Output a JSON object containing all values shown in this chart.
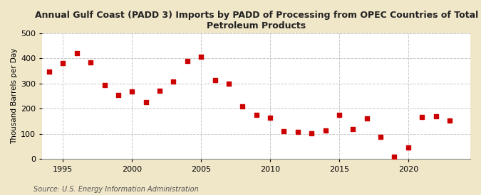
{
  "title": "Annual Gulf Coast (PADD 3) Imports by PADD of Processing from OPEC Countries of Total\nPetroleum Products",
  "ylabel": "Thousand Barrels per Day",
  "source": "Source: U.S. Energy Information Administration",
  "fig_bg_color": "#f0e6c8",
  "plot_bg_color": "#ffffff",
  "marker_color": "#cc0000",
  "years": [
    1994,
    1995,
    1996,
    1997,
    1998,
    1999,
    2000,
    2001,
    2002,
    2003,
    2004,
    2005,
    2006,
    2007,
    2008,
    2009,
    2010,
    2011,
    2012,
    2013,
    2014,
    2015,
    2016,
    2017,
    2018,
    2019,
    2020,
    2021,
    2022,
    2023
  ],
  "values": [
    348,
    382,
    422,
    383,
    293,
    255,
    268,
    228,
    271,
    308,
    390,
    408,
    313,
    300,
    210,
    175,
    165,
    110,
    108,
    103,
    113,
    175,
    121,
    163,
    90,
    10,
    47,
    168,
    170,
    153
  ],
  "ylim": [
    0,
    500
  ],
  "yticks": [
    0,
    100,
    200,
    300,
    400,
    500
  ],
  "xlim": [
    1993.5,
    2024.5
  ],
  "xticks": [
    1995,
    2000,
    2005,
    2010,
    2015,
    2020
  ],
  "grid_color": "#c8c8c8",
  "title_fontsize": 9,
  "axis_label_fontsize": 7.5,
  "tick_fontsize": 8,
  "source_fontsize": 7
}
